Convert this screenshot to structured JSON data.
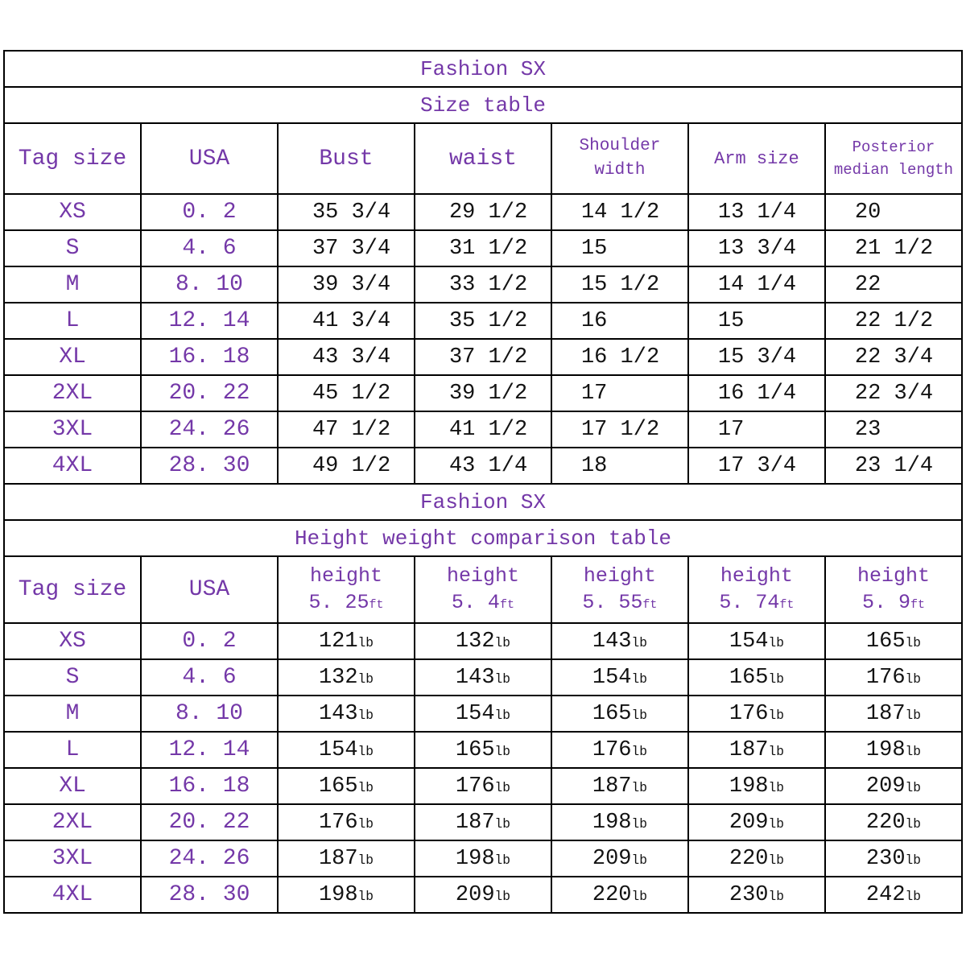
{
  "colors": {
    "accent_purple": "#7438A8",
    "text_black": "#121212",
    "border_black": "#000000",
    "background": "#FFFFFF"
  },
  "table1": {
    "brand": "Fashion SX",
    "subtitle": "Size table",
    "headers": [
      "Tag size",
      "USA",
      "Bust",
      "waist",
      "Shoulder width",
      "Arm size",
      "Posterior median length"
    ],
    "rows": [
      {
        "tag": "XS",
        "usa": "0. 2",
        "cells": [
          "35 3/4",
          "29 1/2",
          "14 1/2",
          "13 1/4",
          "20"
        ]
      },
      {
        "tag": "S",
        "usa": "4. 6",
        "cells": [
          "37 3/4",
          "31 1/2",
          "15",
          "13 3/4",
          "21 1/2"
        ]
      },
      {
        "tag": "M",
        "usa": "8. 10",
        "cells": [
          "39 3/4",
          "33 1/2",
          "15 1/2",
          "14 1/4",
          "22"
        ]
      },
      {
        "tag": "L",
        "usa": "12. 14",
        "cells": [
          "41 3/4",
          "35 1/2",
          "16",
          "15",
          "22 1/2"
        ]
      },
      {
        "tag": "XL",
        "usa": "16. 18",
        "cells": [
          "43 3/4",
          "37 1/2",
          "16 1/2",
          "15 3/4",
          "22 3/4"
        ]
      },
      {
        "tag": "2XL",
        "usa": "20. 22",
        "cells": [
          "45 1/2",
          "39 1/2",
          "17",
          "16 1/4",
          "22 3/4"
        ]
      },
      {
        "tag": "3XL",
        "usa": "24. 26",
        "cells": [
          "47 1/2",
          "41 1/2",
          "17 1/2",
          "17",
          "23"
        ]
      },
      {
        "tag": "4XL",
        "usa": "28. 30",
        "cells": [
          "49 1/2",
          "43 1/4",
          "18",
          "17 3/4",
          "23 1/4"
        ]
      }
    ]
  },
  "table2": {
    "brand": "Fashion SX",
    "subtitle": "Height weight comparison table",
    "headers_left": [
      "Tag size",
      "USA"
    ],
    "height_label": "height",
    "heights": [
      "5. 25",
      "5. 4",
      "5. 55",
      "5. 74",
      "5. 9"
    ],
    "unit_ft": "ft",
    "unit_lb": "lb",
    "rows": [
      {
        "tag": "XS",
        "usa": "0. 2",
        "weights": [
          "121",
          "132",
          "143",
          "154",
          "165"
        ]
      },
      {
        "tag": "S",
        "usa": "4. 6",
        "weights": [
          "132",
          "143",
          "154",
          "165",
          "176"
        ]
      },
      {
        "tag": "M",
        "usa": "8. 10",
        "weights": [
          "143",
          "154",
          "165",
          "176",
          "187"
        ]
      },
      {
        "tag": "L",
        "usa": "12. 14",
        "weights": [
          "154",
          "165",
          "176",
          "187",
          "198"
        ]
      },
      {
        "tag": "XL",
        "usa": "16. 18",
        "weights": [
          "165",
          "176",
          "187",
          "198",
          "209"
        ]
      },
      {
        "tag": "2XL",
        "usa": "20. 22",
        "weights": [
          "176",
          "187",
          "198",
          "209",
          "220"
        ]
      },
      {
        "tag": "3XL",
        "usa": "24. 26",
        "weights": [
          "187",
          "198",
          "209",
          "220",
          "230"
        ]
      },
      {
        "tag": "4XL",
        "usa": "28. 30",
        "weights": [
          "198",
          "209",
          "220",
          "230",
          "242"
        ]
      }
    ]
  }
}
